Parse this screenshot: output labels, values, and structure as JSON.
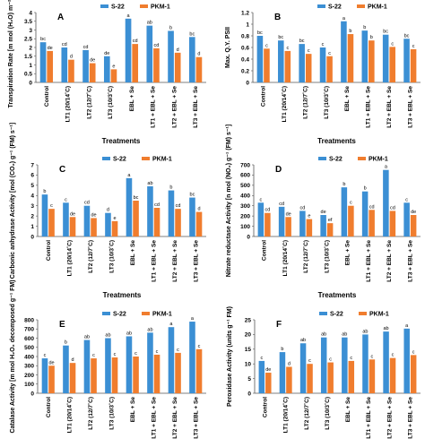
{
  "legend": {
    "series": [
      {
        "name": "S-22",
        "color": "#3b8fd4"
      },
      {
        "name": "PKM-1",
        "color": "#f07d2e"
      }
    ]
  },
  "chart_data": [
    {
      "type": "bar",
      "panel": "A",
      "ylabel": "Transpiration Rate [m mol (H₂O) m⁻² s⁻¹]",
      "xlabel": "Treatments",
      "categories": [
        "Control",
        "LT1 (20/14˚C)",
        "LT2 (12/7˚C)",
        "LT3 (10/3˚C)",
        "EBL + Se",
        "LT1 + EBL + Se",
        "LT2 + EBL + Se",
        "LT3 + EBL + Se"
      ],
      "ylim": [
        0,
        4
      ],
      "yticks": [
        "0",
        "0.5",
        "1",
        "1.5",
        "2",
        "2.5",
        "3",
        "3.5",
        "4"
      ],
      "series": [
        {
          "name": "S-22",
          "values": [
            2.3,
            2.0,
            1.85,
            1.5,
            3.65,
            3.25,
            2.95,
            2.6
          ],
          "labels": [
            "bc",
            "cd",
            "cd",
            "de",
            "a",
            "ab",
            "b",
            "bc"
          ]
        },
        {
          "name": "PKM-1",
          "values": [
            1.8,
            1.3,
            1.1,
            0.75,
            2.2,
            1.95,
            1.7,
            1.45
          ],
          "labels": [
            "de",
            "d",
            "de",
            "e",
            "cd",
            "cd",
            "d",
            "d"
          ]
        }
      ]
    },
    {
      "type": "bar",
      "panel": "B",
      "ylabel": "Max. Q.Y. PSII",
      "xlabel": "Treatments",
      "categories": [
        "Control",
        "LT1 (20/14˚C)",
        "LT2 (12/7˚C)",
        "LT3 (10/3˚C)",
        "EBL + Se",
        "LT1 + EBL + Se",
        "LT2 + EBL + Se",
        "LT3 + EBL + Se"
      ],
      "ylim": [
        0,
        1.2
      ],
      "yticks": [
        "0",
        "0.2",
        "0.4",
        "0.6",
        "0.8",
        "1",
        "1.2"
      ],
      "series": [
        {
          "name": "S-22",
          "values": [
            0.8,
            0.72,
            0.66,
            0.6,
            1.05,
            0.89,
            0.82,
            0.75
          ],
          "labels": [
            "bc",
            "bc",
            "bc",
            "c",
            "a",
            "b",
            "bc",
            "bc"
          ]
        },
        {
          "name": "PKM-1",
          "values": [
            0.58,
            0.54,
            0.49,
            0.45,
            0.83,
            0.72,
            0.61,
            0.57
          ],
          "labels": [
            "c",
            "c",
            "c",
            "c",
            "b",
            "b",
            "c",
            "c"
          ]
        }
      ]
    },
    {
      "type": "bar",
      "panel": "C",
      "ylabel": "Carbonic anhydrase Activity [mol (CO₂) g⁻¹ (FM) s⁻¹]",
      "xlabel": "Treatments",
      "categories": [
        "Control",
        "LT1 (20/14˚C)",
        "LT2 (12/7˚C)",
        "LT3 (10/3˚C)",
        "EBL + Se",
        "LT1 + EBL + Se",
        "LT2 + EBL + Se",
        "LT3 + EBL + Se"
      ],
      "ylim": [
        0,
        7
      ],
      "yticks": [
        "0",
        "1",
        "2",
        "3",
        "4",
        "5",
        "6",
        "7"
      ],
      "series": [
        {
          "name": "S-22",
          "values": [
            4.1,
            3.3,
            3.0,
            2.3,
            5.7,
            4.9,
            4.5,
            3.8
          ],
          "labels": [
            "b",
            "c",
            "cd",
            "d",
            "a",
            "ab",
            "b",
            "bc"
          ]
        },
        {
          "name": "PKM-1",
          "values": [
            2.7,
            1.9,
            1.8,
            1.5,
            3.5,
            2.8,
            2.7,
            2.4
          ],
          "labels": [
            "c",
            "de",
            "de",
            "e",
            "bc",
            "cd",
            "cd",
            "d"
          ]
        }
      ]
    },
    {
      "type": "bar",
      "panel": "D",
      "ylabel": "Nitrate reductase Activity [n mol (NO₂) g⁻¹ (FM) s⁻¹]",
      "xlabel": "Treatments",
      "categories": [
        "Control",
        "LT1 (20/14˚C)",
        "LT2 (12/7˚C)",
        "LT3 (10/3˚C)",
        "EBL + Se",
        "LT1 + EBL + Se",
        "LT2 + EBL + Se",
        "LT3 + EBL + Se"
      ],
      "ylim": [
        0,
        700
      ],
      "yticks": [
        "0",
        "100",
        "200",
        "300",
        "400",
        "500",
        "600",
        "700"
      ],
      "series": [
        {
          "name": "S-22",
          "values": [
            330,
            290,
            250,
            210,
            480,
            440,
            650,
            330
          ],
          "labels": [
            "c",
            "cd",
            "cd",
            "de",
            "b",
            "b",
            "a",
            "c"
          ]
        },
        {
          "name": "PKM-1",
          "values": [
            230,
            190,
            170,
            130,
            300,
            260,
            250,
            210
          ],
          "labels": [
            "cd",
            "de",
            "e",
            "ef",
            "c",
            "cd",
            "cd",
            "de"
          ]
        }
      ]
    },
    {
      "type": "bar",
      "panel": "E",
      "ylabel": "Catalase Activity [m mol H₂O₂ decomposed g⁻¹ FM)",
      "xlabel": "Treatments",
      "categories": [
        "Control",
        "LT1 (20/14˚C)",
        "LT2 (12/7˚C)",
        "LT3 (10/3˚C)",
        "EBL + Se",
        "LT1 + EBL + Se",
        "LT2 + EBL + Se",
        "LT3 + EBL + Se"
      ],
      "ylim": [
        0,
        800
      ],
      "yticks": [
        "0",
        "100",
        "200",
        "300",
        "400",
        "500",
        "600",
        "700",
        "800"
      ],
      "series": [
        {
          "name": "S-22",
          "values": [
            380,
            520,
            580,
            600,
            620,
            660,
            720,
            780
          ],
          "labels": [
            "c",
            "b",
            "ab",
            "ab",
            "ab",
            "ab",
            "a",
            "a"
          ]
        },
        {
          "name": "PKM-1",
          "values": [
            300,
            330,
            380,
            390,
            400,
            420,
            440,
            480
          ],
          "labels": [
            "de",
            "d",
            "c",
            "c",
            "c",
            "c",
            "c",
            "c"
          ]
        }
      ]
    },
    {
      "type": "bar",
      "panel": "F",
      "ylabel": "Peroxidase Activity (units g⁻¹ FM)",
      "xlabel": "Treatments",
      "categories": [
        "Control",
        "LT1 (20/14˚C)",
        "LT2 (12/7˚C)",
        "LT3 (10/3˚C)",
        "EBL + Se",
        "LT1 + EBL + Se",
        "LT2 + EBL + Se",
        "LT3 + EBL + Se"
      ],
      "ylim": [
        0,
        25
      ],
      "yticks": [
        "0",
        "5",
        "10",
        "15",
        "20",
        "25"
      ],
      "series": [
        {
          "name": "S-22",
          "values": [
            11,
            14,
            17,
            19,
            19,
            20,
            21,
            22
          ],
          "labels": [
            "c",
            "b",
            "ab",
            "ab",
            "ab",
            "ab",
            "ab",
            "a"
          ]
        },
        {
          "name": "PKM-1",
          "values": [
            7,
            9,
            10,
            10.5,
            11,
            11.5,
            12,
            13
          ],
          "labels": [
            "de",
            "d",
            "c",
            "c",
            "c",
            "c",
            "c",
            "c"
          ]
        }
      ]
    }
  ]
}
